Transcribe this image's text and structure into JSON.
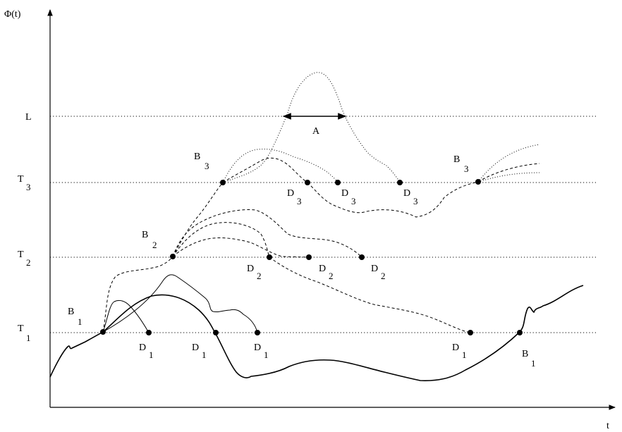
{
  "axes": {
    "y_label": "Φ(t)",
    "x_label": "t"
  },
  "levels": {
    "L": "L",
    "T3": {
      "main": "T",
      "sub": "3"
    },
    "T2": {
      "main": "T",
      "sub": "2"
    },
    "T1": {
      "main": "T",
      "sub": "1"
    }
  },
  "annotation": {
    "A": "A"
  },
  "points": {
    "B1_left": {
      "main": "B",
      "sub": "1"
    },
    "B1_right": {
      "main": "B",
      "sub": "1"
    },
    "B2": {
      "main": "B",
      "sub": "2"
    },
    "B3_left": {
      "main": "B",
      "sub": "3"
    },
    "B3_right": {
      "main": "B",
      "sub": "3"
    },
    "D1_a": {
      "main": "D",
      "sub": "1"
    },
    "D1_b": {
      "main": "D",
      "sub": "1"
    },
    "D1_c": {
      "main": "D",
      "sub": "1"
    },
    "D1_d": {
      "main": "D",
      "sub": "1"
    },
    "D2_a": {
      "main": "D",
      "sub": "2"
    },
    "D2_b": {
      "main": "D",
      "sub": "2"
    },
    "D2_c": {
      "main": "D",
      "sub": "2"
    },
    "D3_a": {
      "main": "D",
      "sub": "3"
    },
    "D3_b": {
      "main": "D",
      "sub": "3"
    },
    "D3_c": {
      "main": "D",
      "sub": "3"
    }
  }
}
